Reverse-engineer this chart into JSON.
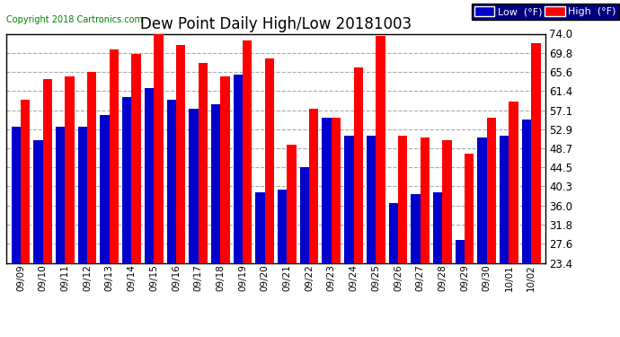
{
  "title": "Dew Point Daily High/Low 20181003",
  "copyright": "Copyright 2018 Cartronics.com",
  "dates": [
    "09/09",
    "09/10",
    "09/11",
    "09/12",
    "09/13",
    "09/14",
    "09/15",
    "09/16",
    "09/17",
    "09/18",
    "09/19",
    "09/20",
    "09/21",
    "09/22",
    "09/23",
    "09/24",
    "09/25",
    "09/26",
    "09/27",
    "09/28",
    "09/29",
    "09/30",
    "10/01",
    "10/02"
  ],
  "highs": [
    59.5,
    64.0,
    64.5,
    65.5,
    70.5,
    69.5,
    75.0,
    71.5,
    67.5,
    64.5,
    72.5,
    68.5,
    49.5,
    57.5,
    55.5,
    66.5,
    73.5,
    51.5,
    51.0,
    50.5,
    47.5,
    55.5,
    59.0,
    72.0
  ],
  "lows": [
    53.5,
    50.5,
    53.5,
    53.5,
    56.0,
    60.0,
    62.0,
    59.5,
    57.5,
    58.5,
    65.0,
    39.0,
    39.5,
    44.5,
    55.5,
    51.5,
    51.5,
    36.5,
    38.5,
    39.0,
    28.5,
    51.0,
    51.5,
    55.0
  ],
  "high_color": "#ff0000",
  "low_color": "#0000cc",
  "bg_color": "#ffffff",
  "grid_color": "#aaaaaa",
  "ylim_min": 23.4,
  "ylim_max": 74.0,
  "yticks": [
    23.4,
    27.6,
    31.8,
    36.0,
    40.3,
    44.5,
    48.7,
    52.9,
    57.1,
    61.4,
    65.6,
    69.8,
    74.0
  ],
  "legend_low_label": "Low  (°F)",
  "legend_high_label": "High  (°F)"
}
